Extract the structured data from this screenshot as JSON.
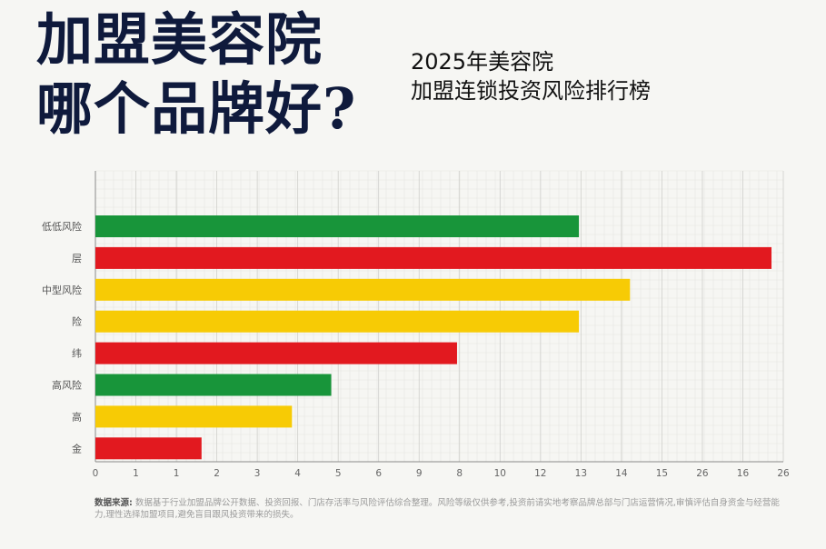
{
  "header": {
    "title_line1": "加盟美容院",
    "title_line2": "哪个品牌好?",
    "subtitle_line1": "2025年美容院",
    "subtitle_line2": "加盟连锁投资风险排行榜"
  },
  "chart_data": {
    "type": "bar",
    "orientation": "horizontal",
    "categories": [
      "低低风险",
      "层",
      "中型风险",
      "险",
      "纬",
      "高风险",
      "高",
      "金"
    ],
    "values": [
      12.3,
      17.2,
      13.6,
      12.3,
      9.2,
      6.0,
      5.0,
      2.7
    ],
    "bar_colors": [
      "#18953a",
      "#e2191f",
      "#f7cb05",
      "#f7cb05",
      "#e2191f",
      "#18953a",
      "#f7cb05",
      "#e2191f"
    ],
    "xtick_labels": [
      "0",
      "1",
      "1",
      "2",
      "3",
      "4",
      "5",
      "6",
      "9",
      "8",
      "10",
      "12",
      "13",
      "14",
      "15",
      "26",
      "16",
      "26"
    ],
    "xlim": [
      0,
      17.5
    ],
    "grid": true,
    "title": "",
    "xlabel": "",
    "ylabel": ""
  },
  "footnote": {
    "source_label": "数据来源:",
    "text": "数据基于行业加盟品牌公开数据、投资回报、门店存活率与风险评估综合整理。风险等级仅供参考,投资前请实地考察品牌总部与门店运营情况,审慎评估自身资金与经营能力,理性选择加盟项目,避免盲目跟风投资带来的损失。"
  }
}
